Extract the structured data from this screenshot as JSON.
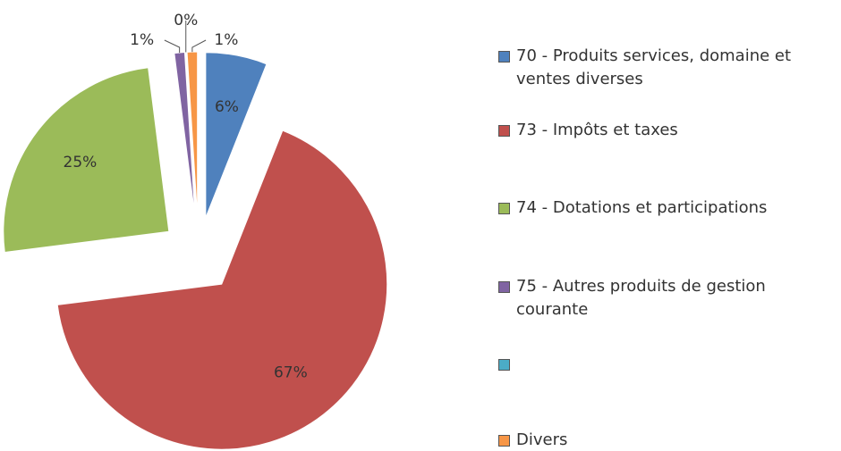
{
  "chart_data": {
    "type": "pie",
    "series": [
      {
        "name": "70 - Produits services, domaine et ventes diverses",
        "color": "#4f81bd",
        "value": 6,
        "value_label": "6%"
      },
      {
        "name": "73 - Impôts et taxes",
        "color": "#c0504d",
        "value": 67,
        "value_label": "67%"
      },
      {
        "name": "74 - Dotations et participations",
        "color": "#9bbb59",
        "value": 25,
        "value_label": "25%"
      },
      {
        "name": "75 - Autres produits de gestion courante",
        "color": "#8064a2",
        "value": 1,
        "value_label": "1%"
      },
      {
        "name": null,
        "color": "#4bacc6",
        "value": 0,
        "value_label": "0%"
      },
      {
        "name": "Divers",
        "color": "#f79646",
        "value": 1,
        "value_label": "1%"
      }
    ],
    "legend": "right"
  }
}
